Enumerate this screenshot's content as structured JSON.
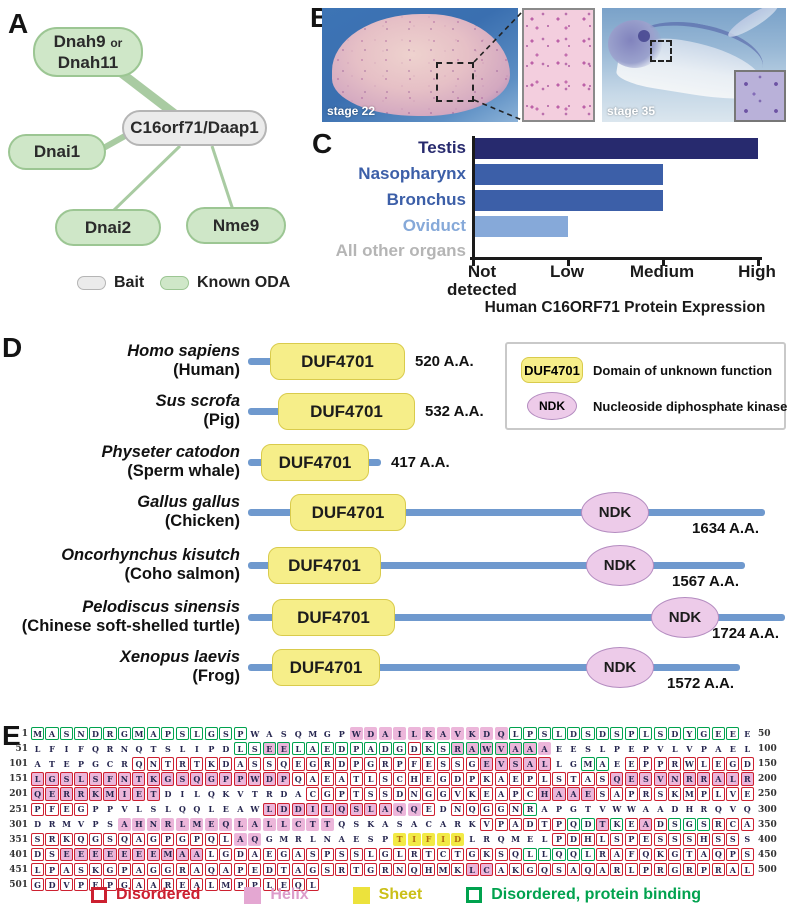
{
  "panel_labels": {
    "a": "A",
    "b": "B",
    "c": "C",
    "d": "D",
    "e": "E"
  },
  "panelA": {
    "nodes": {
      "dnah": {
        "name1": "Dnah9",
        "or": "or",
        "name2": "Dnah11"
      },
      "bait": {
        "label": "C16orf71/Daap1"
      },
      "dnai1": {
        "label": "Dnai1"
      },
      "dnai2": {
        "label": "Dnai2"
      },
      "nme9": {
        "label": "Nme9"
      }
    },
    "legend": {
      "bait": "Bait",
      "oda": "Known ODA"
    },
    "colors": {
      "node_green": "#cfe7c8",
      "node_green_border": "#9cc693",
      "node_gray": "#ebebeb",
      "node_gray_border": "#b5b5b5",
      "edge": "#a9cba2"
    }
  },
  "panelB": {
    "left_label": "stage 22",
    "right_label": "stage 35"
  },
  "chart_data": {
    "type": "bar",
    "orientation": "horizontal",
    "title": "Human C16ORF71 Protein Expression",
    "categories": [
      "Testis",
      "Nasopharynx",
      "Bronchus",
      "Oviduct",
      "All other organs"
    ],
    "values": [
      "High",
      "Medium",
      "Medium",
      "Low",
      "Not detected"
    ],
    "values_numeric": [
      3,
      2,
      2,
      1,
      0
    ],
    "x_ticks": [
      "Not detected",
      "Low",
      "Medium",
      "High"
    ],
    "xlim": [
      "Not detected",
      "High"
    ],
    "grid": false,
    "bar_colors": [
      "#272a6e",
      "#3c5fa8",
      "#3c5fa8",
      "#86a9d9",
      "#ffffff"
    ],
    "label_colors": [
      "#272a6e",
      "#3c5fa8",
      "#3c5fa8",
      "#86a9d9",
      "#b5b5b5"
    ]
  },
  "panelD": {
    "duf_label": "DUF4701",
    "ndk_label": "NDK",
    "legend": [
      {
        "label": "DUF4701",
        "desc": "Domain of unknown function"
      },
      {
        "label": "NDK",
        "desc": "Nucleoside diphosphate kinase"
      }
    ],
    "species": [
      {
        "latin": "Homo sapiens",
        "common": "(Human)",
        "aa": "520 A.A.",
        "line_w": 157,
        "duf_x": 22,
        "duf_w": 135,
        "ndk_x": null,
        "label_pos": "right"
      },
      {
        "latin": "Sus scrofa",
        "common": "(Pig)",
        "aa": "532 A.A.",
        "line_w": 167,
        "duf_x": 30,
        "duf_w": 137,
        "ndk_x": null,
        "label_pos": "right"
      },
      {
        "latin": "Physeter catodon",
        "common": "(Sperm whale)",
        "aa": "417 A.A.",
        "line_w": 133,
        "duf_x": 13,
        "duf_w": 108,
        "ndk_x": null,
        "label_pos": "right"
      },
      {
        "latin": "Gallus gallus",
        "common": "(Chicken)",
        "aa": "1634 A.A.",
        "line_w": 517,
        "duf_x": 42,
        "duf_w": 116,
        "ndk_x": 367,
        "label_pos": "below"
      },
      {
        "latin": "Oncorhynchus kisutch",
        "common": "(Coho salmon)",
        "aa": "1567 A.A.",
        "line_w": 497,
        "duf_x": 20,
        "duf_w": 113,
        "ndk_x": 372,
        "label_pos": "below"
      },
      {
        "latin": "Pelodiscus sinensis",
        "common": "(Chinese soft-shelled turtle)",
        "aa": "1724 A.A.",
        "line_w": 537,
        "duf_x": 24,
        "duf_w": 123,
        "ndk_x": 437,
        "label_pos": "below"
      },
      {
        "latin": "Xenopus laevis",
        "common": "(Frog)",
        "aa": "1572 A.A.",
        "line_w": 492,
        "duf_x": 24,
        "duf_w": 108,
        "ndk_x": 372,
        "label_pos": "below"
      }
    ]
  },
  "panelE": {
    "rows": [
      {
        "start": "1",
        "end": "50",
        "seq": "MASNDRGMAPSLGSPWASQMGPWDAILKAVKDQLPSLDSDSPLSDYGEEE",
        "box": "GGGGGGGGGGGGGGG..................GGGGGGGGGGGGGGGG.",
        "bg": "......................PPPPPPPPPPP................."
      },
      {
        "start": "51",
        "end": "100",
        "seq": "LFIFQRNQTSLIPDLSEELAEDPADGDKSRAWVAAAEESLPEPVLVPAEL",
        "box": "..............GGGGGGGGGGGGRGGGGGGGG..............",
        "bg": "................PP...........PPPPPPP.............."
      },
      {
        "start": "101",
        "end": "150",
        "seq": "ATEPGCRQNTRTKDASSQEGRDPGRPFESSGEVSALLGMAEEPPRWLEGD",
        "box": ".......RRRRRRRRRRRRRRRRRRRRRRRRRRRRR..GG.RRRRRRRRR",
        "bg": "...............................PPPPP.............."
      },
      {
        "start": "151",
        "end": "200",
        "seq": "LGSLSFNTKGSQGPPWDPQAEATLSCHEGDPKAEPLSTASQESVNRRALR",
        "box": "RRRRRRRRRRRRRRRRRRRRRRRRRRRRRRRRRRRRRRRRRRRRRRRRRR",
        "bg": "PPPPPPPPPPPPPPPPPP......................PPPPPPPPPP"
      },
      {
        "start": "201",
        "end": "250",
        "seq": "QERRKMIETDILQKVTRDACGPTSSDNGGVKEAPCHAAESAPRSKMPLVE",
        "box": "RRRRRRRRR..........RRRRRRRRRRRRRRRRRRRRRRRRRRRRRRR",
        "bg": "PPPPPPPPP..........................PPPP..........."
      },
      {
        "start": "251",
        "end": "300",
        "seq": "PFEGPPVLSLQQLEAWLDDILQSLAQQEDNQGGNRAPGTVWWAADHRQVQ",
        "box": "RRRR............RRRRRRRRR..R.RRRRRG...............",
        "bg": "................PPPPPPPPPPP......................."
      },
      {
        "start": "301",
        "end": "350",
        "seq": "DRMVPSAHNRLMEQLALLCTTQSKASACARKVPADTPQDTKEADSGSRCA",
        "box": "...............................RRRRRRGGRGRRRGGGRRR",
        "bg": "......PPPPPPPPPPPPPPP..................P..P........"
      },
      {
        "start": "351",
        "end": "400",
        "seq": "SRKQGSQAGPGPQLAQGMRLNAESPTIFIDLRQMELPDHLSPESSSHSSS",
        "box": "RRRRRRRRRRRRRR......................RRRRRRRRRRRRR.",
        "bg": "..............PP.........YYYYY....................."
      },
      {
        "start": "401",
        "end": "450",
        "seq": "DSEEEEEEEMAALGDAEGASPSSLGLRTCTGKSQLLQQLRAFQKGTAQPS",
        "box": "RRRRRRRRRRRRRRRRRRRRRRRRRRRRRRRRRRGGGGGRRRRRRRRRRR",
        "bg": "..PPPPPPPPPP......................................"
      },
      {
        "start": "451",
        "end": "500",
        "seq": "LPASKGPAGGRAQAPEDTAGSRTGRNQHMKLCAKGQSAQARLPRGRPRAL",
        "box": "RRRRRRRRRRRRRRRRRRRRRRRRRRRRRRRRRRRRRRRRRRRRRRRRRR",
        "bg": "..............................PP.................."
      },
      {
        "start": "501",
        "end": "",
        "seq": "GDVPEPGAAREALMPPLEQL",
        "box": "RRRRRRRRRRRRRRRRRRRR",
        "bg": "...................."
      }
    ],
    "legend": [
      {
        "label": "Disordered",
        "type": "red",
        "color": "#cc2030"
      },
      {
        "label": "Helix",
        "type": "pink",
        "color": "#dc9cca"
      },
      {
        "label": "Sheet",
        "type": "yellow",
        "color": "#cbbf17"
      },
      {
        "label": "Disordered, protein binding",
        "type": "green",
        "color": "#00a24e"
      }
    ]
  }
}
